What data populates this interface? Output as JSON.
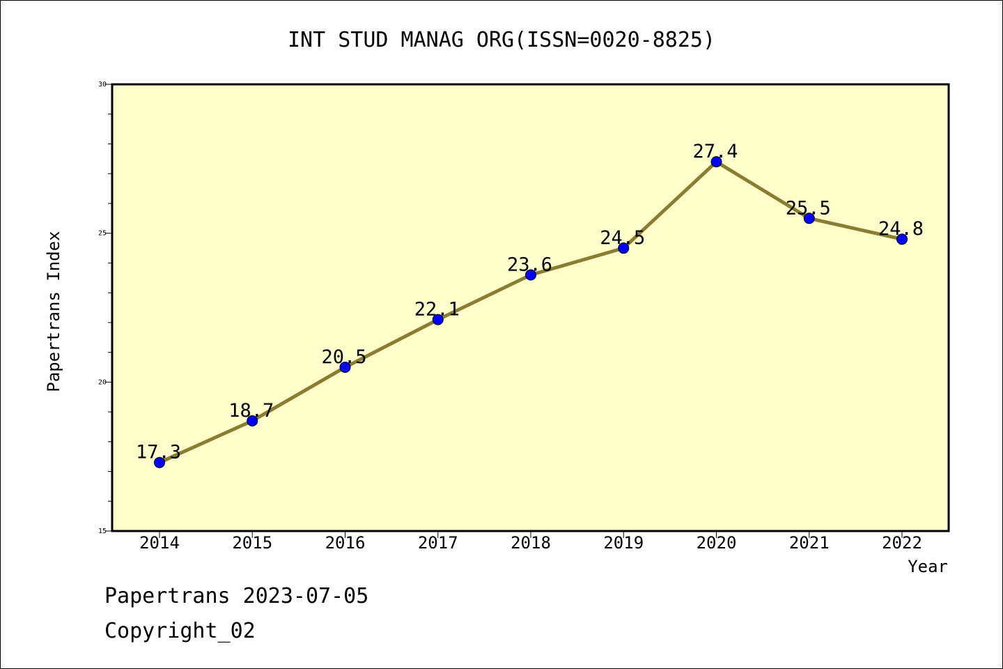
{
  "chart_data": {
    "type": "line",
    "title": "INT STUD MANAG ORG(ISSN=0020-8825)",
    "xlabel": "Year",
    "ylabel": "Papertrans Index",
    "categories": [
      "2014",
      "2015",
      "2016",
      "2017",
      "2018",
      "2019",
      "2020",
      "2021",
      "2022"
    ],
    "series": [
      {
        "values": [
          17.3,
          18.7,
          20.5,
          22.1,
          23.6,
          24.5,
          27.4,
          25.5,
          24.8
        ],
        "labels": [
          "17.3",
          "18.7",
          "20.5",
          "22.1",
          "23.6",
          "24.5",
          "27.4",
          "25.5",
          "24.8"
        ]
      }
    ],
    "ylim": [
      15,
      30
    ],
    "yticks": [
      "15",
      "20",
      "25",
      "30"
    ],
    "grid": false,
    "legend": "none",
    "colors": {
      "plot_background": "#ffffcc",
      "line": "#8b7d30",
      "marker": "#0000ff"
    }
  },
  "footer": {
    "line1": "Papertrans 2023-07-05",
    "line2": "Copyright_02"
  }
}
